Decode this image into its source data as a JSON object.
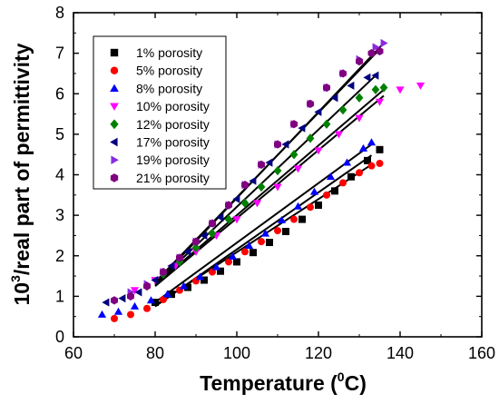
{
  "chart_data": {
    "type": "scatter",
    "title": "",
    "xlabel": "Temperature (",
    "xlabel_sup": "0",
    "xlabel_end": "C)",
    "ylabel_sup": "3",
    "ylabel_pre": "10",
    "ylabel": "/real part of permittivity",
    "xlim": [
      60,
      160
    ],
    "ylim": [
      0,
      8
    ],
    "xticks": [
      "60",
      "80",
      "100",
      "120",
      "140",
      "160"
    ],
    "yticks": [
      "0",
      "1",
      "2",
      "3",
      "4",
      "5",
      "6",
      "7",
      "8"
    ],
    "grid": false,
    "legend_position": "top-left",
    "series": [
      {
        "name": "1% porosity",
        "color": "#000000",
        "marker": "square",
        "x": [
          80,
          84,
          88,
          92,
          96,
          100,
          104,
          108,
          112,
          116,
          120,
          124,
          128,
          132,
          135
        ],
        "y": [
          0.85,
          1.05,
          1.22,
          1.4,
          1.62,
          1.85,
          2.08,
          2.33,
          2.6,
          2.9,
          3.25,
          3.6,
          3.95,
          4.35,
          4.62
        ],
        "fit": [
          [
            80,
            0.75
          ],
          [
            133,
            4.48
          ]
        ]
      },
      {
        "name": "5% porosity",
        "color": "#ff0000",
        "marker": "circle",
        "x": [
          70,
          74,
          78,
          82,
          86,
          90,
          94,
          98,
          102,
          106,
          110,
          114,
          118,
          122,
          126,
          130,
          133,
          135
        ],
        "y": [
          0.45,
          0.55,
          0.7,
          0.92,
          1.15,
          1.38,
          1.6,
          1.85,
          2.1,
          2.35,
          2.62,
          2.9,
          3.2,
          3.5,
          3.8,
          4.05,
          4.22,
          4.28
        ],
        "fit": [
          [
            80,
            0.78
          ],
          [
            133,
            4.25
          ]
        ]
      },
      {
        "name": "8% porosity",
        "color": "#0000ff",
        "marker": "triangle-up",
        "x": [
          67,
          71,
          75,
          79,
          83,
          87,
          91,
          95,
          99,
          103,
          107,
          111,
          115,
          119,
          123,
          127,
          131,
          133
        ],
        "y": [
          0.55,
          0.62,
          0.75,
          0.9,
          1.05,
          1.25,
          1.48,
          1.72,
          1.98,
          2.25,
          2.55,
          2.88,
          3.22,
          3.58,
          3.95,
          4.3,
          4.65,
          4.8
        ],
        "fit": [
          [
            80,
            0.85
          ],
          [
            133,
            4.75
          ]
        ]
      },
      {
        "name": "10% porosity",
        "color": "#ff00ff",
        "marker": "triangle-down",
        "x": [
          75,
          80,
          85,
          90,
          95,
          100,
          105,
          110,
          115,
          120,
          125,
          130,
          135,
          140,
          145
        ],
        "y": [
          1.15,
          1.4,
          1.75,
          2.1,
          2.5,
          2.9,
          3.3,
          3.7,
          4.15,
          4.6,
          5.0,
          5.4,
          5.8,
          6.1,
          6.2
        ],
        "fit": [
          [
            80,
            1.25
          ],
          [
            136,
            5.95
          ]
        ]
      },
      {
        "name": "12% porosity",
        "color": "#008000",
        "marker": "diamond",
        "x": [
          78,
          82,
          86,
          90,
          94,
          98,
          102,
          106,
          110,
          114,
          118,
          122,
          126,
          130,
          134,
          136
        ],
        "y": [
          1.25,
          1.55,
          1.85,
          2.2,
          2.55,
          2.9,
          3.3,
          3.7,
          4.1,
          4.5,
          4.9,
          5.25,
          5.6,
          5.9,
          6.1,
          6.15
        ],
        "fit": [
          [
            80,
            1.28
          ],
          [
            136,
            6.1
          ]
        ]
      },
      {
        "name": "17% porosity",
        "color": "#000080",
        "marker": "triangle-left",
        "x": [
          68,
          72,
          76,
          80,
          84,
          88,
          92,
          96,
          100,
          104,
          108,
          112,
          116,
          120,
          124,
          128,
          132,
          134
        ],
        "y": [
          0.85,
          0.95,
          1.1,
          1.4,
          1.75,
          2.1,
          2.5,
          2.95,
          3.4,
          3.85,
          4.3,
          4.75,
          5.15,
          5.55,
          5.9,
          6.2,
          6.4,
          6.45
        ],
        "fit": [
          [
            80,
            1.3
          ],
          [
            134,
            6.45
          ]
        ]
      },
      {
        "name": "19% porosity",
        "color": "#8a2be2",
        "marker": "triangle-right",
        "x": [
          74,
          78,
          82,
          86,
          90,
          94,
          98,
          102,
          106,
          110,
          114,
          118,
          122,
          126,
          130,
          134,
          136
        ],
        "y": [
          1.1,
          1.3,
          1.6,
          1.95,
          2.35,
          2.8,
          3.25,
          3.75,
          4.25,
          4.75,
          5.25,
          5.75,
          6.15,
          6.5,
          6.85,
          7.15,
          7.25
        ],
        "fit": [
          [
            80,
            1.3
          ],
          [
            136,
            7.25
          ]
        ]
      },
      {
        "name": "21% porosity",
        "color": "#800080",
        "marker": "hexagon",
        "x": [
          70,
          74,
          78,
          82,
          86,
          90,
          94,
          98,
          102,
          106,
          110,
          114,
          118,
          122,
          126,
          130,
          133,
          135
        ],
        "y": [
          0.9,
          1.0,
          1.25,
          1.6,
          1.95,
          2.35,
          2.8,
          3.25,
          3.75,
          4.25,
          4.75,
          5.25,
          5.75,
          6.15,
          6.5,
          6.8,
          7.0,
          7.05
        ],
        "fit": [
          [
            80,
            1.35
          ],
          [
            135,
            7.1
          ]
        ]
      }
    ]
  }
}
